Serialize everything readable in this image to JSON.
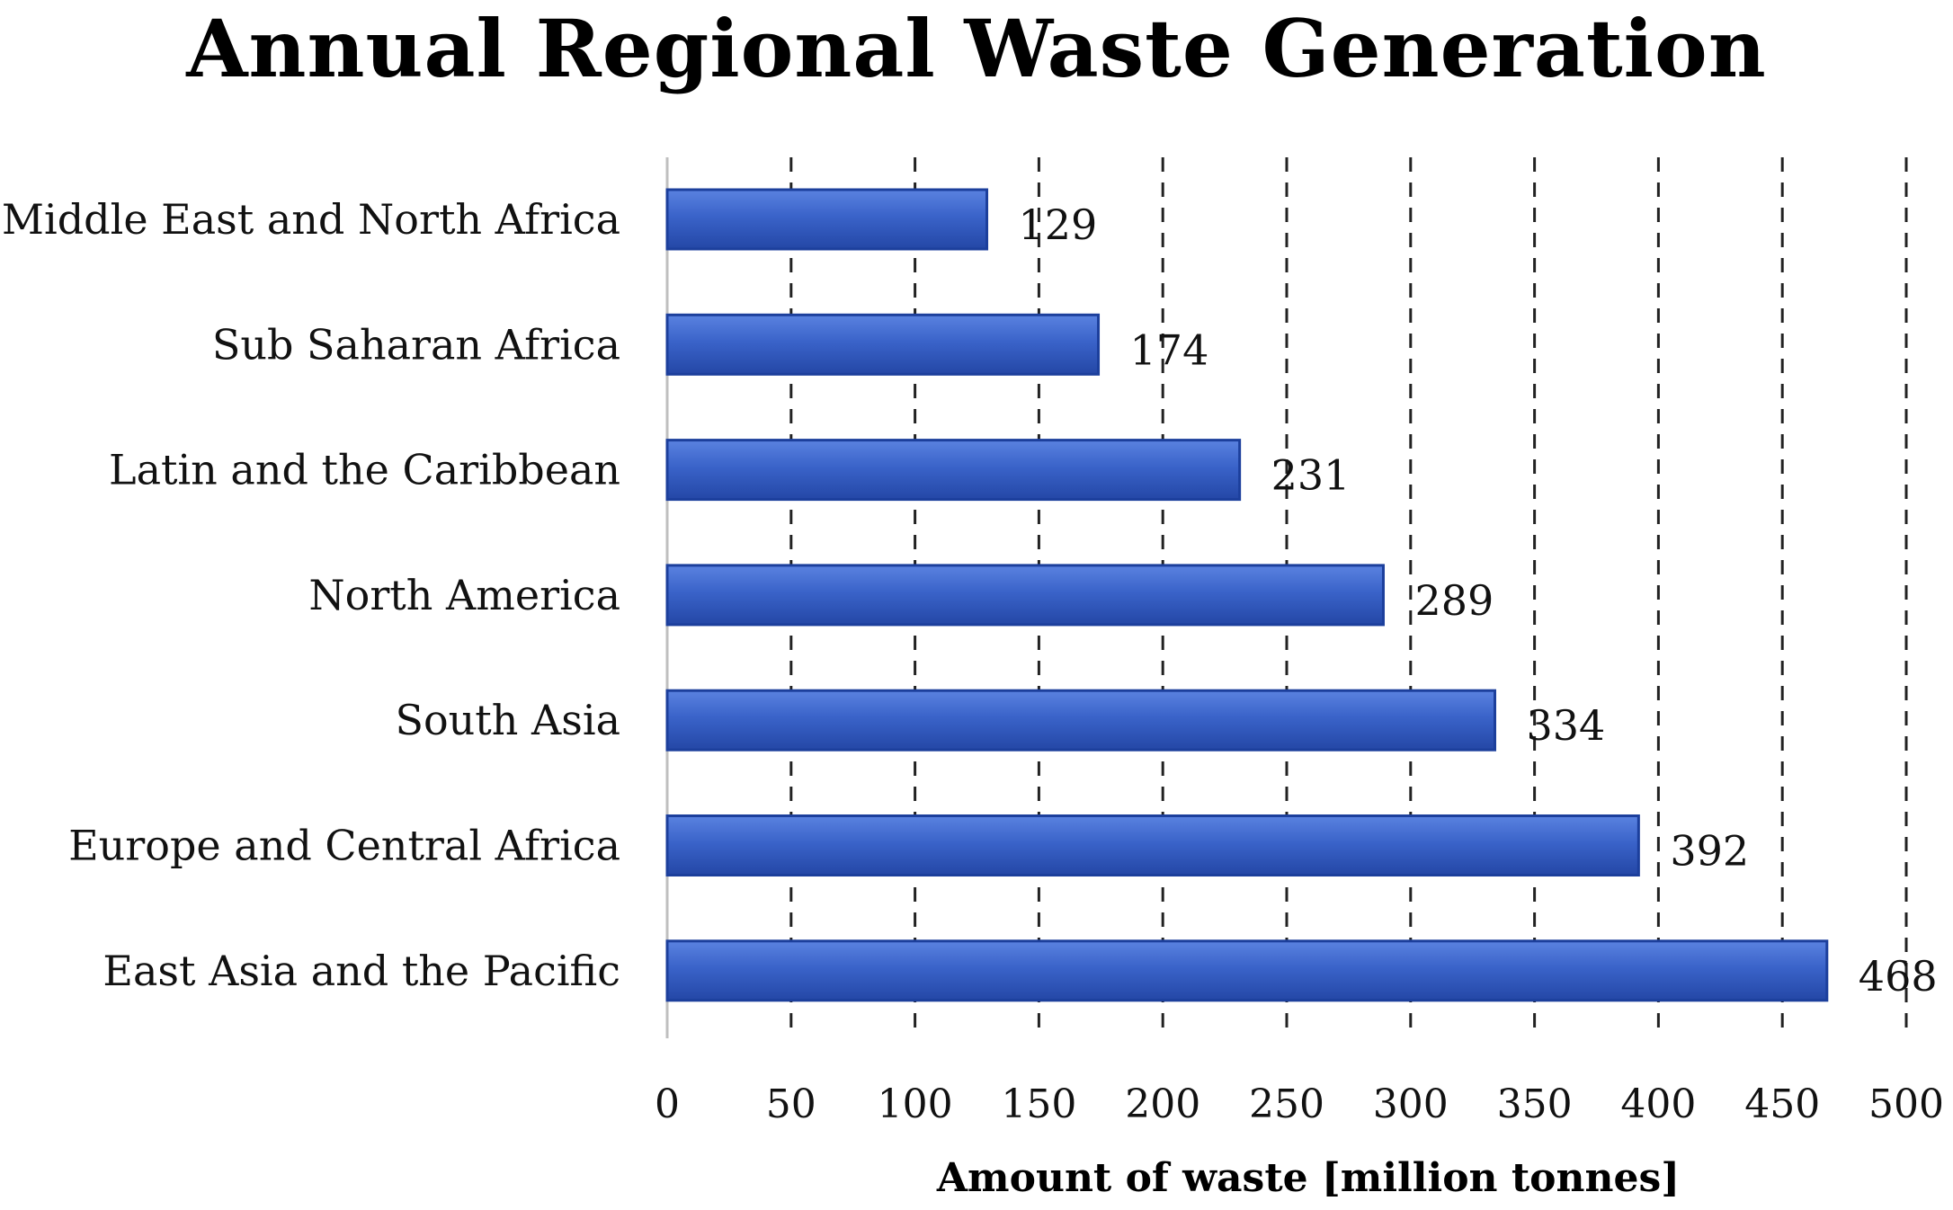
{
  "chart_data": {
    "type": "bar",
    "orientation": "horizontal",
    "title": "Annual Regional Waste Generation",
    "xlabel": "Amount of waste [million tonnes]",
    "ylabel": "",
    "categories": [
      "Middle East and North Africa",
      "Sub Saharan Africa",
      "Latin and the Caribbean",
      "North America",
      "South Asia",
      "Europe and Central Africa",
      "East Asia and the Pacific"
    ],
    "values": [
      129,
      174,
      231,
      289,
      334,
      392,
      468
    ],
    "xlim": [
      0,
      500
    ],
    "ticks": [
      "0",
      "50",
      "100",
      "150",
      "200",
      "250",
      "300",
      "350",
      "400",
      "450",
      "500"
    ],
    "grid": "vertical dashed",
    "bar_color": "#3a63c9",
    "bar_edge_color": "#1c3f9c"
  }
}
